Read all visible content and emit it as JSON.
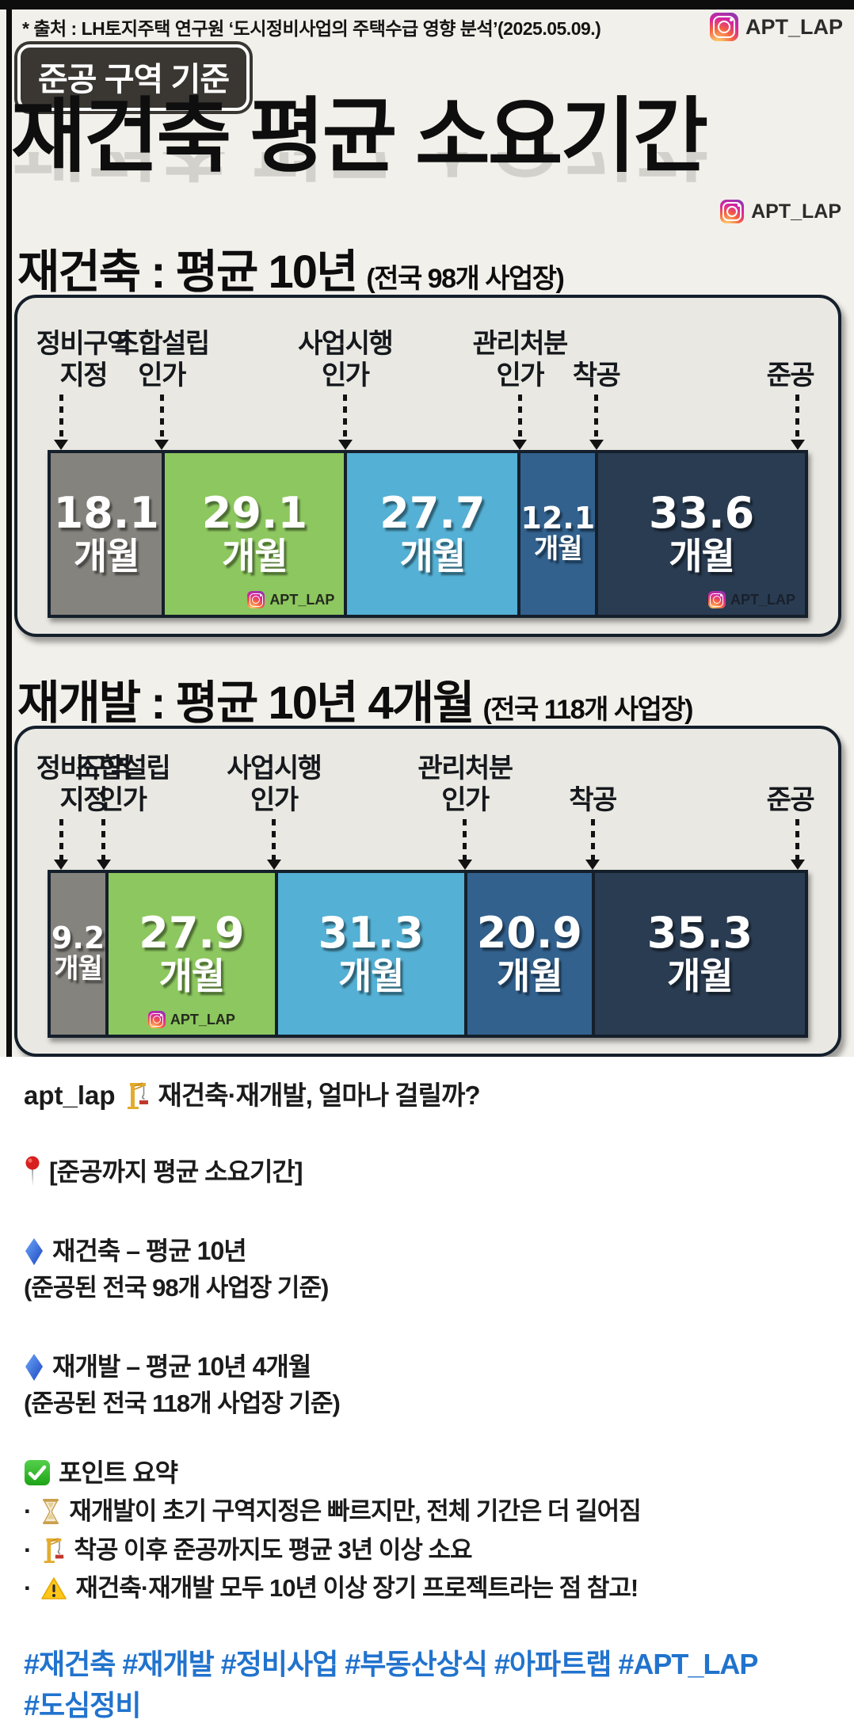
{
  "header": {
    "source": "* 출처 : LH토지주택 연구원 ‘도시정비사업의 주택수급 영향 분석’(2025.05.09.)",
    "instagram_handle": "APT_LAP",
    "badge": "준공 구역 기준",
    "title": "재건축 평균 소요기간"
  },
  "colors": {
    "background_beige": "#f2f0ea",
    "panel_fill": "#e9e8e2",
    "panel_border": "#141f2b",
    "badge_fill": "#3a3733",
    "hashtag_blue": "#2173cd",
    "segment_gray": "#85837d",
    "segment_green": "#8dc75f",
    "segment_lightblue": "#54b0d4",
    "segment_blue": "#32618e",
    "segment_navy": "#2a3c52"
  },
  "chart_data": [
    {
      "type": "bar",
      "orientation": "horizontal-stacked",
      "title": "재건축 : 평균 10년",
      "subtitle": "(전국 98개 사업장)",
      "milestones": [
        "정비구역 지정",
        "조합설립 인가",
        "사업시행 인가",
        "관리처분 인가",
        "착공",
        "준공"
      ],
      "values": [
        18.1,
        29.1,
        27.7,
        12.1,
        33.6
      ],
      "total": 120.6,
      "unit": "개월",
      "colors": [
        "#85837d",
        "#8dc75f",
        "#54b0d4",
        "#32618e",
        "#2a3c52"
      ],
      "watermarks": [
        {
          "segment_index": 1,
          "style": "dark",
          "align": "right",
          "label": "APT_LAP"
        },
        {
          "segment_index": 4,
          "style": "dim",
          "align": "right",
          "label": "APT_LAP"
        }
      ]
    },
    {
      "type": "bar",
      "orientation": "horizontal-stacked",
      "title": "재개발 : 평균 10년 4개월",
      "subtitle": "(전국 118개 사업장)",
      "milestones": [
        "정비구역 지정",
        "조합설립 인가",
        "사업시행 인가",
        "관리처분 인가",
        "착공",
        "준공"
      ],
      "values": [
        9.2,
        27.9,
        31.3,
        20.9,
        35.3
      ],
      "total": 124.6,
      "unit": "개월",
      "colors": [
        "#85837d",
        "#8dc75f",
        "#54b0d4",
        "#32618e",
        "#2a3c52"
      ],
      "watermarks": [
        {
          "segment_index": 1,
          "style": "dark",
          "align": "center",
          "label": "APT_LAP"
        }
      ]
    }
  ],
  "caption": {
    "handle": "apt_lap",
    "intro": "재건축·재개발, 얼마나 걸릴까?",
    "pin_line": "[준공까지 평균 소요기간]",
    "item1_title": "재건축 – 평균 10년",
    "item1_sub": "(준공된 전국 98개 사업장 기준)",
    "item2_title": "재개발 – 평균 10년 4개월",
    "item2_sub": "(준공된 전국 118개 사업장 기준)",
    "summary_title": "포인트 요약",
    "bullet_dot": "·",
    "bullets": [
      {
        "icon": "hourglass",
        "text": "재개발이 초기 구역지정은 빠르지만, 전체 기간은 더 길어짐"
      },
      {
        "icon": "crane",
        "text": "착공 이후 준공까지도 평균 3년 이상 소요"
      },
      {
        "icon": "warning",
        "text": "재건축·재개발 모두 10년 이상 장기 프로젝트라는 점 참고!"
      }
    ],
    "hashtags_line1": "#재건축 #재개발 #정비사업 #부동산상식 #아파트랩 #APT_LAP",
    "hashtags_line2": "#도심정비"
  }
}
